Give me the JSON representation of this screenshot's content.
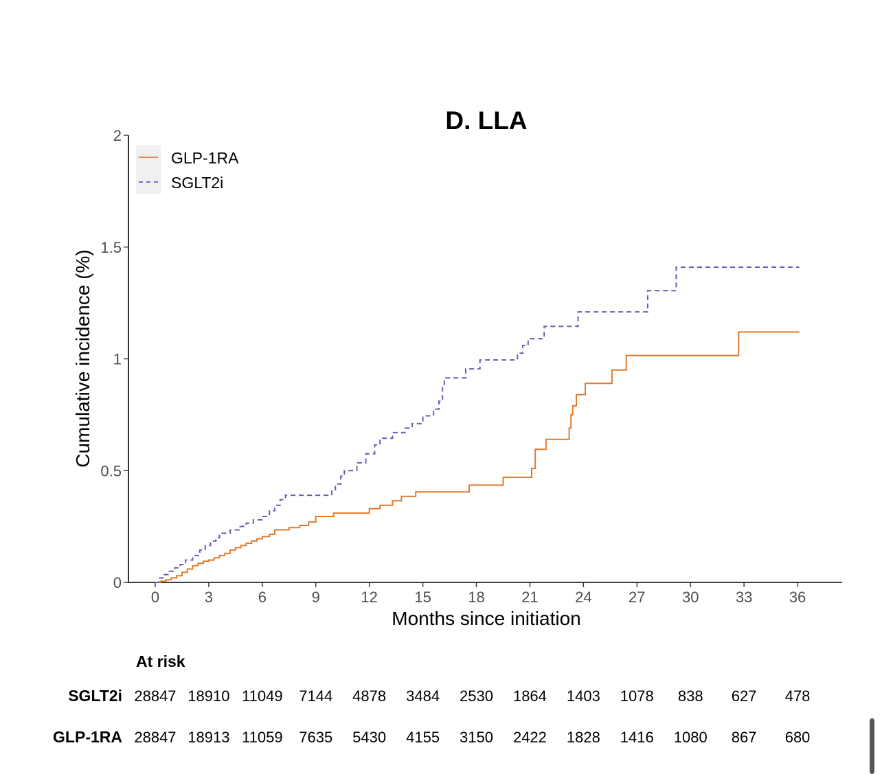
{
  "chart_data": {
    "type": "line",
    "step": true,
    "title": "D. LLA",
    "xlabel": "Months since initiation",
    "ylabel": "Cumulative incidence (%)",
    "xlim": [
      -1.5,
      38.5
    ],
    "ylim": [
      0,
      2
    ],
    "x_ticks": [
      0,
      3,
      6,
      9,
      12,
      15,
      18,
      21,
      24,
      27,
      30,
      33,
      36
    ],
    "y_ticks": [
      0,
      0.5,
      1,
      1.5,
      2
    ],
    "y_tick_labels": [
      "0",
      "0.5",
      "1",
      "1.5",
      "2"
    ],
    "grid": false,
    "legend": {
      "position": "top-left"
    },
    "series": [
      {
        "name": "GLP-1RA",
        "color": "#e07b2e",
        "dash": "solid",
        "points": [
          [
            0,
            0
          ],
          [
            0.3,
            0.005
          ],
          [
            0.6,
            0.012
          ],
          [
            0.9,
            0.02
          ],
          [
            1.2,
            0.03
          ],
          [
            1.5,
            0.045
          ],
          [
            1.8,
            0.06
          ],
          [
            2.1,
            0.075
          ],
          [
            2.4,
            0.085
          ],
          [
            2.7,
            0.095
          ],
          [
            3.0,
            0.1
          ],
          [
            3.3,
            0.11
          ],
          [
            3.6,
            0.12
          ],
          [
            3.9,
            0.13
          ],
          [
            4.2,
            0.145
          ],
          [
            4.5,
            0.155
          ],
          [
            4.8,
            0.165
          ],
          [
            5.1,
            0.175
          ],
          [
            5.4,
            0.185
          ],
          [
            5.7,
            0.195
          ],
          [
            6.0,
            0.205
          ],
          [
            6.4,
            0.215
          ],
          [
            6.7,
            0.235
          ],
          [
            7.5,
            0.245
          ],
          [
            8.1,
            0.255
          ],
          [
            8.6,
            0.27
          ],
          [
            9.0,
            0.295
          ],
          [
            10.0,
            0.31
          ],
          [
            12.0,
            0.33
          ],
          [
            12.6,
            0.345
          ],
          [
            13.3,
            0.365
          ],
          [
            13.8,
            0.385
          ],
          [
            14.6,
            0.405
          ],
          [
            17.6,
            0.435
          ],
          [
            19.5,
            0.47
          ],
          [
            21.1,
            0.51
          ],
          [
            21.3,
            0.595
          ],
          [
            21.9,
            0.64
          ],
          [
            23.2,
            0.69
          ],
          [
            23.3,
            0.75
          ],
          [
            23.4,
            0.79
          ],
          [
            23.6,
            0.84
          ],
          [
            24.1,
            0.89
          ],
          [
            25.6,
            0.95
          ],
          [
            26.4,
            1.015
          ],
          [
            32.7,
            1.12
          ],
          [
            36.1,
            1.12
          ]
        ]
      },
      {
        "name": "SGLT2i",
        "color": "#6b5bb5",
        "dash": "dashed",
        "points": [
          [
            0,
            0
          ],
          [
            0.2,
            0.02
          ],
          [
            0.5,
            0.035
          ],
          [
            0.8,
            0.05
          ],
          [
            1.1,
            0.065
          ],
          [
            1.4,
            0.08
          ],
          [
            1.7,
            0.1
          ],
          [
            2.1,
            0.12
          ],
          [
            2.5,
            0.145
          ],
          [
            2.8,
            0.165
          ],
          [
            3.1,
            0.185
          ],
          [
            3.4,
            0.2
          ],
          [
            3.6,
            0.22
          ],
          [
            4.2,
            0.235
          ],
          [
            4.7,
            0.25
          ],
          [
            5.1,
            0.265
          ],
          [
            5.5,
            0.28
          ],
          [
            6.0,
            0.295
          ],
          [
            6.4,
            0.32
          ],
          [
            6.7,
            0.345
          ],
          [
            7.0,
            0.37
          ],
          [
            7.3,
            0.39
          ],
          [
            9.9,
            0.415
          ],
          [
            10.1,
            0.44
          ],
          [
            10.4,
            0.475
          ],
          [
            10.6,
            0.5
          ],
          [
            11.3,
            0.535
          ],
          [
            11.8,
            0.575
          ],
          [
            12.3,
            0.615
          ],
          [
            12.6,
            0.645
          ],
          [
            13.3,
            0.67
          ],
          [
            14.0,
            0.69
          ],
          [
            14.4,
            0.71
          ],
          [
            15.0,
            0.745
          ],
          [
            15.6,
            0.775
          ],
          [
            15.9,
            0.81
          ],
          [
            16.1,
            0.875
          ],
          [
            16.2,
            0.915
          ],
          [
            17.4,
            0.955
          ],
          [
            18.2,
            0.995
          ],
          [
            20.3,
            1.025
          ],
          [
            20.6,
            1.06
          ],
          [
            20.9,
            1.09
          ],
          [
            21.8,
            1.145
          ],
          [
            23.7,
            1.21
          ],
          [
            27.6,
            1.305
          ],
          [
            29.2,
            1.41
          ],
          [
            36.1,
            1.41
          ]
        ]
      }
    ],
    "risk_table": {
      "title": "At risk",
      "rows": [
        {
          "label": "SGLT2i",
          "values": [
            "28847",
            "18910",
            "11049",
            "7144",
            "4878",
            "3484",
            "2530",
            "1864",
            "1403",
            "1078",
            "838",
            "627",
            "478"
          ]
        },
        {
          "label": "GLP-1RA",
          "values": [
            "28847",
            "18913",
            "11059",
            "7635",
            "5430",
            "4155",
            "3150",
            "2422",
            "1828",
            "1416",
            "1080",
            "867",
            "680"
          ]
        }
      ]
    }
  }
}
